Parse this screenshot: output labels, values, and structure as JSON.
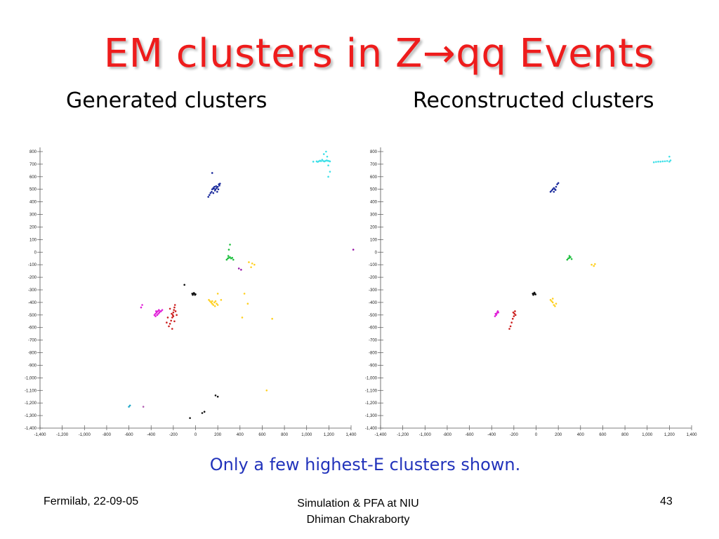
{
  "slide": {
    "title": "EM clusters in Z→qq Events",
    "note": "Only a few highest-E clusters shown.",
    "footer_left": "Fermilab, 22-09-05",
    "footer_center_line1": "Simulation & PFA at NIU",
    "footer_center_line2": "Dhiman Chakraborty",
    "page_number": "43"
  },
  "chart_data": [
    {
      "type": "scatter",
      "title": "Generated clusters",
      "xlabel": "",
      "ylabel": "",
      "xlim": [
        -1400,
        1400
      ],
      "ylim": [
        -1400,
        800
      ],
      "xticks": [
        -1400,
        -1200,
        -1000,
        -800,
        -600,
        -400,
        -200,
        0,
        200,
        400,
        600,
        800,
        1000,
        1200,
        1400
      ],
      "xtick_labels": [
        "-1,400",
        "-1,200",
        "-1,000",
        "-800",
        "-600",
        "-400",
        "-200",
        "0",
        "200",
        "400",
        "600",
        "800",
        "1,000",
        "1,200",
        "1,400"
      ],
      "yticks": [
        800,
        700,
        600,
        500,
        400,
        300,
        200,
        100,
        0,
        -100,
        -200,
        -300,
        -400,
        -500,
        -600,
        -700,
        -800,
        -900,
        -1000,
        -1100,
        -1200,
        -1300,
        -1400
      ],
      "ytick_labels": [
        "800",
        "700",
        "600",
        "500",
        "400",
        "300",
        "200",
        "100",
        "0",
        "-100",
        "-200",
        "-300",
        "-400",
        "-500",
        "-600",
        "-700",
        "-800",
        "-900",
        "-1,000",
        "-1,100",
        "-1,200",
        "-1,300",
        "-1,400"
      ],
      "grid": false,
      "series": [
        {
          "color": "#40e0e8",
          "points": [
            [
              1060,
              720
            ],
            [
              1090,
              722
            ],
            [
              1110,
              723
            ],
            [
              1130,
              724
            ],
            [
              1150,
              725
            ],
            [
              1160,
              722
            ],
            [
              1170,
              726
            ],
            [
              1180,
              730
            ],
            [
              1190,
              727
            ],
            [
              1200,
              725
            ],
            [
              1210,
              722
            ],
            [
              1140,
              735
            ],
            [
              1155,
              780
            ],
            [
              1175,
              800
            ],
            [
              1185,
              760
            ],
            [
              1195,
              690
            ],
            [
              1210,
              640
            ],
            [
              1195,
              600
            ],
            [
              1120,
              728
            ],
            [
              1100,
              718
            ]
          ]
        },
        {
          "color": "#1a2a9c",
          "points": [
            [
              115,
              440
            ],
            [
              125,
              455
            ],
            [
              135,
              470
            ],
            [
              145,
              480
            ],
            [
              150,
              500
            ],
            [
              160,
              510
            ],
            [
              170,
              520
            ],
            [
              180,
              500
            ],
            [
              190,
              510
            ],
            [
              200,
              520
            ],
            [
              210,
              540
            ],
            [
              205,
              500
            ],
            [
              195,
              480
            ],
            [
              175,
              490
            ],
            [
              165,
              505
            ],
            [
              185,
              525
            ],
            [
              215,
              530
            ],
            [
              220,
              545
            ],
            [
              160,
              470
            ],
            [
              150,
              630
            ]
          ]
        },
        {
          "color": "#cc1f1f",
          "points": [
            [
              -240,
              -590
            ],
            [
              -230,
              -570
            ],
            [
              -220,
              -545
            ],
            [
              -210,
              -520
            ],
            [
              -205,
              -500
            ],
            [
              -200,
              -480
            ],
            [
              -195,
              -460
            ],
            [
              -190,
              -440
            ],
            [
              -185,
              -420
            ],
            [
              -200,
              -510
            ],
            [
              -215,
              -490
            ],
            [
              -180,
              -470
            ],
            [
              -230,
              -450
            ],
            [
              -250,
              -520
            ],
            [
              -260,
              -560
            ],
            [
              -170,
              -500
            ],
            [
              -210,
              -610
            ],
            [
              -190,
              -550
            ]
          ]
        },
        {
          "color": "#e020d8",
          "points": [
            [
              -370,
              -500
            ],
            [
              -360,
              -490
            ],
            [
              -350,
              -480
            ],
            [
              -340,
              -470
            ],
            [
              -330,
              -460
            ],
            [
              -325,
              -480
            ],
            [
              -345,
              -500
            ],
            [
              -355,
              -470
            ],
            [
              -335,
              -490
            ],
            [
              -310,
              -470
            ],
            [
              -480,
              -420
            ],
            [
              -490,
              -440
            ],
            [
              -320,
              -470
            ],
            [
              -300,
              -460
            ],
            [
              -360,
              -510
            ]
          ]
        },
        {
          "color": "#20c040",
          "points": [
            [
              280,
              -60
            ],
            [
              290,
              -50
            ],
            [
              300,
              -45
            ],
            [
              310,
              -40
            ],
            [
              320,
              -50
            ],
            [
              330,
              -45
            ],
            [
              340,
              -60
            ],
            [
              300,
              20
            ],
            [
              310,
              60
            ],
            [
              295,
              -30
            ]
          ]
        },
        {
          "color": "#ffd020",
          "points": [
            [
              120,
              -380
            ],
            [
              130,
              -390
            ],
            [
              140,
              -400
            ],
            [
              150,
              -410
            ],
            [
              160,
              -420
            ],
            [
              170,
              -400
            ],
            [
              180,
              -390
            ],
            [
              190,
              -410
            ],
            [
              200,
              -420
            ],
            [
              175,
              -430
            ],
            [
              150,
              -390
            ],
            [
              200,
              -330
            ],
            [
              230,
              -380
            ],
            [
              530,
              -100
            ],
            [
              500,
              -120
            ],
            [
              480,
              -80
            ],
            [
              510,
              -90
            ],
            [
              420,
              -520
            ],
            [
              690,
              -530
            ],
            [
              470,
              -410
            ],
            [
              440,
              -330
            ],
            [
              640,
              -1100
            ]
          ]
        },
        {
          "color": "#111111",
          "points": [
            [
              -30,
              -330
            ],
            [
              -20,
              -330
            ],
            [
              -10,
              -330
            ],
            [
              0,
              -335
            ],
            [
              -25,
              -340
            ],
            [
              -15,
              -325
            ],
            [
              -5,
              -340
            ],
            [
              -100,
              -260
            ],
            [
              200,
              -1150
            ],
            [
              180,
              -1140
            ],
            [
              80,
              -1270
            ],
            [
              60,
              -1280
            ],
            [
              -50,
              -1320
            ]
          ]
        },
        {
          "color": "#9a1aa8",
          "points": [
            [
              390,
              -130
            ],
            [
              410,
              -140
            ],
            [
              1420,
              20
            ]
          ]
        },
        {
          "color": "#20a8c8",
          "points": [
            [
              -590,
              -1220
            ],
            [
              -600,
              -1230
            ]
          ]
        },
        {
          "color": "#b05ab0",
          "points": [
            [
              -470,
              -1230
            ]
          ]
        }
      ]
    },
    {
      "type": "scatter",
      "title": "Reconstructed clusters",
      "xlabel": "",
      "ylabel": "",
      "xlim": [
        -1400,
        1400
      ],
      "ylim": [
        -1400,
        800
      ],
      "xticks": [
        -1400,
        -1200,
        -1000,
        -800,
        -600,
        -400,
        -200,
        0,
        200,
        400,
        600,
        800,
        1000,
        1200,
        1400
      ],
      "xtick_labels": [
        "-1,400",
        "-1,200",
        "-1,000",
        "-800",
        "-600",
        "-400",
        "-200",
        "0",
        "200",
        "400",
        "600",
        "800",
        "1,000",
        "1,200",
        "1,400"
      ],
      "yticks": [
        800,
        700,
        600,
        500,
        400,
        300,
        200,
        100,
        0,
        -100,
        -200,
        -300,
        -400,
        -500,
        -600,
        -700,
        -800,
        -900,
        -1000,
        -1100,
        -1200,
        -1300,
        -1400
      ],
      "ytick_labels": [
        "800",
        "700",
        "600",
        "500",
        "400",
        "300",
        "200",
        "100",
        "0",
        "-100",
        "-200",
        "-300",
        "-400",
        "-500",
        "-600",
        "-700",
        "-800",
        "-900",
        "-1,000",
        "-1,100",
        "-1,200",
        "-1,300",
        "-1,400"
      ],
      "grid": false,
      "series": [
        {
          "color": "#40e0e8",
          "points": [
            [
              1060,
              715
            ],
            [
              1080,
              718
            ],
            [
              1100,
              720
            ],
            [
              1120,
              720
            ],
            [
              1140,
              722
            ],
            [
              1160,
              723
            ],
            [
              1180,
              725
            ],
            [
              1200,
              720
            ],
            [
              1210,
              730
            ],
            [
              1200,
              760
            ]
          ]
        },
        {
          "color": "#1a2a9c",
          "points": [
            [
              130,
              480
            ],
            [
              140,
              490
            ],
            [
              150,
              500
            ],
            [
              160,
              510
            ],
            [
              170,
              500
            ],
            [
              180,
              520
            ],
            [
              190,
              540
            ],
            [
              200,
              550
            ],
            [
              160,
              480
            ],
            [
              175,
              495
            ]
          ]
        },
        {
          "color": "#cc1f1f",
          "points": [
            [
              -240,
              -610
            ],
            [
              -230,
              -590
            ],
            [
              -220,
              -560
            ],
            [
              -210,
              -530
            ],
            [
              -200,
              -510
            ],
            [
              -195,
              -490
            ],
            [
              -190,
              -470
            ],
            [
              -205,
              -480
            ],
            [
              -185,
              -500
            ]
          ]
        },
        {
          "color": "#e020d8",
          "points": [
            [
              -370,
              -510
            ],
            [
              -360,
              -500
            ],
            [
              -355,
              -490
            ],
            [
              -350,
              -480
            ],
            [
              -345,
              -470
            ],
            [
              -340,
              -480
            ],
            [
              -365,
              -490
            ]
          ]
        },
        {
          "color": "#20c040",
          "points": [
            [
              280,
              -60
            ],
            [
              290,
              -50
            ],
            [
              300,
              -45
            ],
            [
              310,
              -40
            ],
            [
              320,
              -55
            ],
            [
              300,
              -30
            ]
          ]
        },
        {
          "color": "#ffd020",
          "points": [
            [
              130,
              -380
            ],
            [
              140,
              -390
            ],
            [
              150,
              -400
            ],
            [
              160,
              -420
            ],
            [
              170,
              -430
            ],
            [
              180,
              -410
            ],
            [
              150,
              -370
            ],
            [
              500,
              -100
            ],
            [
              520,
              -110
            ],
            [
              530,
              -95
            ]
          ]
        },
        {
          "color": "#111111",
          "points": [
            [
              -30,
              -330
            ],
            [
              -20,
              -328
            ],
            [
              -10,
              -332
            ],
            [
              -25,
              -340
            ],
            [
              -15,
              -322
            ],
            [
              -5,
              -336
            ]
          ]
        }
      ]
    }
  ]
}
